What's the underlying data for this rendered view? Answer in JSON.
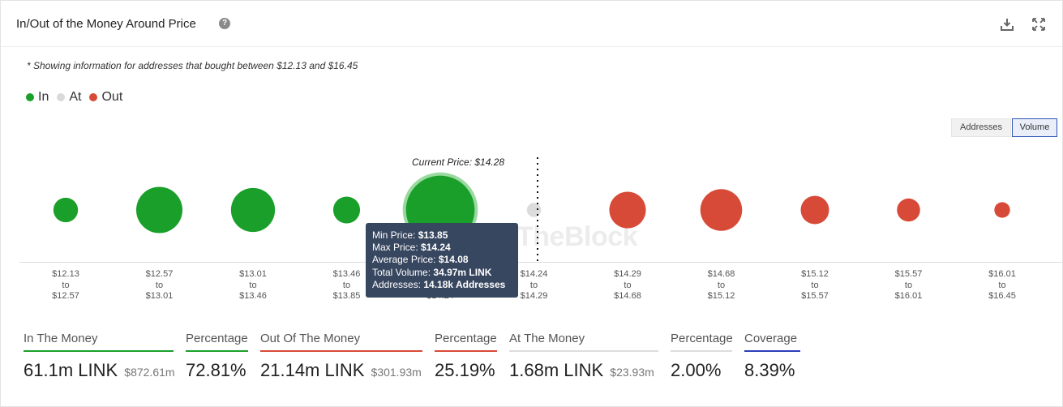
{
  "header": {
    "title": "In/Out of the Money Around Price",
    "help_glyph": "?"
  },
  "note": "* Showing information for addresses that bought between $12.13 and $16.45",
  "legend": [
    {
      "label": "In",
      "color": "#1aa02a"
    },
    {
      "label": "At",
      "color": "#d9d9d9"
    },
    {
      "label": "Out",
      "color": "#d84a38"
    }
  ],
  "toggles": {
    "addresses": "Addresses",
    "volume": "Volume",
    "active": "volume"
  },
  "current_price_label": "Current Price: $14.28",
  "watermark": "TheBlock",
  "colors": {
    "in": "#1aa02a",
    "at": "#dcdcdc",
    "out": "#d84a38",
    "highlight_ring": "#9ad99f"
  },
  "chart_data": {
    "type": "bubble",
    "current_price": 14.28,
    "buckets": [
      {
        "from": "$12.13",
        "to_word": "to",
        "to": "$12.57",
        "status": "in",
        "size": 0.33
      },
      {
        "from": "$12.57",
        "to_word": "to",
        "to": "$13.01",
        "status": "in",
        "size": 0.62
      },
      {
        "from": "$13.01",
        "to_word": "to",
        "to": "$13.46",
        "status": "in",
        "size": 0.59
      },
      {
        "from": "$13.46",
        "to_word": "to",
        "to": "$13.85",
        "status": "in",
        "size": 0.36
      },
      {
        "from": "$13.85",
        "to_word": "to",
        "to": "$14.24",
        "status": "in",
        "size": 0.92,
        "highlighted": true
      },
      {
        "from": "$14.24",
        "to_word": "to",
        "to": "$14.29",
        "status": "at",
        "size": 0.19
      },
      {
        "from": "$14.29",
        "to_word": "to",
        "to": "$14.68",
        "status": "out",
        "size": 0.49
      },
      {
        "from": "$14.68",
        "to_word": "to",
        "to": "$15.12",
        "status": "out",
        "size": 0.56
      },
      {
        "from": "$15.12",
        "to_word": "to",
        "to": "$15.57",
        "status": "out",
        "size": 0.38
      },
      {
        "from": "$15.57",
        "to_word": "to",
        "to": "$16.01",
        "status": "out",
        "size": 0.31
      },
      {
        "from": "$16.01",
        "to_word": "to",
        "to": "$16.45",
        "status": "out",
        "size": 0.21
      }
    ]
  },
  "tooltip": {
    "min_label": "Min Price:",
    "min_value": "$13.85",
    "max_label": "Max Price:",
    "max_value": "$14.24",
    "avg_label": "Average Price:",
    "avg_value": "$14.08",
    "vol_label": "Total Volume:",
    "vol_value": "34.97m LINK",
    "addr_label": "Addresses:",
    "addr_value": "14.18k Addresses"
  },
  "stats": [
    {
      "label": "In The Money",
      "value": "61.1m LINK",
      "sub": "$872.61m",
      "color": "#1aa02a"
    },
    {
      "label": "Percentage",
      "value": "72.81%",
      "sub": "",
      "color": "#1aa02a"
    },
    {
      "label": "Out Of The Money",
      "value": "21.14m LINK",
      "sub": "$301.93m",
      "color": "#d84a38"
    },
    {
      "label": "Percentage",
      "value": "25.19%",
      "sub": "",
      "color": "#d84a38"
    },
    {
      "label": "At The Money",
      "value": "1.68m LINK",
      "sub": "$23.93m",
      "color": "#dddddd"
    },
    {
      "label": "Percentage",
      "value": "2.00%",
      "sub": "",
      "color": "#dddddd"
    },
    {
      "label": "Coverage",
      "value": "8.39%",
      "sub": "",
      "color": "#2a3fb8"
    }
  ]
}
